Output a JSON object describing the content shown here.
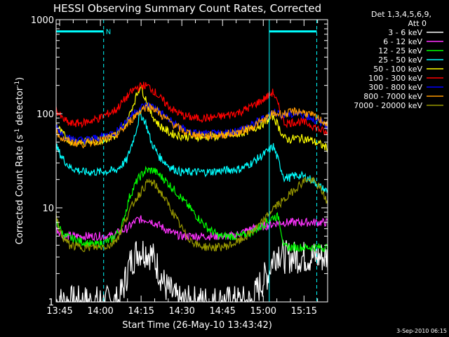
{
  "chart_data": {
    "type": "line",
    "title": "HESSI Observing Summary Count Rates, Corrected",
    "xlabel": "Start Time (26-May-10 13:43:42)",
    "ylabel": "Corrected Count Rate (s",
    "ylabel_exp1": "-1",
    "ylabel_mid": " detector",
    "ylabel_exp2": "-1",
    "ylabel_end": ")",
    "y_scale": "log",
    "ylim": [
      1,
      1000
    ],
    "x_ticks": [
      "13:45",
      "14:00",
      "14:15",
      "14:30",
      "14:45",
      "15:00",
      "15:15"
    ],
    "x_tick_minutes": [
      1.3,
      16.3,
      31.3,
      46.3,
      61.3,
      76.3,
      91.3
    ],
    "xlim_minutes": [
      0,
      100
    ],
    "y_tick_labels": [
      "1",
      "10",
      "100",
      "1000"
    ],
    "y_tick_values": [
      1,
      10,
      100,
      1000
    ],
    "legend_header": [
      "Det 1,3,4,5,6,9,",
      "Att 0"
    ],
    "series": [
      {
        "name": "3 - 6 keV",
        "color": "#ffffff",
        "x": [
          0,
          12,
          23,
          25,
          27,
          30,
          33,
          35,
          37,
          40,
          45,
          60,
          72,
          75,
          78,
          80,
          82,
          84
        ],
        "y": [
          1,
          1,
          1,
          1.5,
          2.5,
          3.5,
          3.5,
          3.2,
          2.5,
          1.5,
          1,
          1,
          1,
          1.5,
          2,
          3,
          3.5,
          3
        ]
      },
      {
        "name": "6 - 12 keV",
        "color": "#ff33ff",
        "x": [
          0,
          3,
          10,
          20,
          26,
          30,
          34,
          38,
          42,
          46,
          55,
          65,
          72,
          78,
          82
        ],
        "y": [
          6,
          5,
          5,
          5,
          6,
          7.5,
          7.5,
          6.5,
          5.5,
          5,
          5,
          5,
          6,
          6.5,
          7
        ]
      },
      {
        "name": "12 - 25 keV",
        "color": "#00ff00",
        "x": [
          0,
          3,
          8,
          14,
          20,
          24,
          27,
          30,
          33,
          36,
          40,
          44,
          48,
          52,
          56,
          60,
          64,
          68,
          72,
          76,
          80,
          82,
          84,
          95
        ],
        "y": [
          7,
          5,
          4.5,
          4,
          4.5,
          6,
          13,
          20,
          25,
          25,
          20,
          15,
          11,
          8,
          6,
          5,
          5,
          5,
          5.5,
          6.5,
          8,
          8,
          3.8,
          3.8
        ]
      },
      {
        "name": "25 - 50 keV",
        "color": "#00ffff",
        "x": [
          0,
          2,
          5,
          10,
          16,
          22,
          26,
          29,
          31,
          33,
          35,
          38,
          42,
          46,
          50,
          56,
          62,
          68,
          72,
          76,
          80,
          84,
          86,
          88,
          90,
          92,
          94,
          96,
          98,
          100
        ],
        "y": [
          45,
          35,
          27,
          24,
          24,
          25,
          32,
          60,
          100,
          80,
          50,
          35,
          27,
          24,
          24,
          24,
          25,
          26,
          30,
          36,
          45,
          21,
          21,
          22,
          22,
          21,
          20,
          18,
          16,
          15
        ]
      },
      {
        "name": "50 - 100 keV",
        "color": "#ffff00",
        "x": [
          0,
          2,
          5,
          10,
          16,
          22,
          26,
          29,
          31,
          33,
          35,
          38,
          42,
          46,
          50,
          56,
          62,
          68,
          72,
          76,
          80,
          84,
          86,
          88,
          90,
          92,
          94,
          96,
          98,
          100
        ],
        "y": [
          78,
          62,
          52,
          50,
          52,
          58,
          80,
          140,
          200,
          145,
          100,
          75,
          62,
          58,
          57,
          57,
          58,
          62,
          68,
          78,
          95,
          55,
          53,
          55,
          55,
          54,
          52,
          49,
          46,
          43
        ]
      },
      {
        "name": "100 - 300 keV",
        "color": "#ff0000",
        "x": [
          0,
          2,
          5,
          10,
          16,
          22,
          26,
          29,
          32,
          34,
          36,
          39,
          43,
          47,
          51,
          56,
          62,
          68,
          72,
          76,
          80,
          84,
          86,
          88,
          90,
          92,
          94,
          96,
          98,
          100
        ],
        "y": [
          110,
          90,
          78,
          80,
          90,
          110,
          150,
          185,
          200,
          195,
          175,
          140,
          110,
          95,
          90,
          90,
          95,
          105,
          120,
          140,
          170,
          80,
          80,
          82,
          82,
          80,
          76,
          70,
          66,
          60
        ]
      },
      {
        "name": "300 - 800 keV",
        "color": "#0000ff",
        "x": [
          0,
          2,
          5,
          10,
          16,
          22,
          26,
          29,
          32,
          34,
          36,
          39,
          43,
          47,
          51,
          56,
          62,
          68,
          72,
          76,
          80,
          84,
          86,
          88,
          90,
          92,
          94,
          96,
          98,
          100
        ],
        "y": [
          75,
          62,
          54,
          52,
          56,
          64,
          85,
          105,
          120,
          122,
          118,
          100,
          80,
          68,
          62,
          60,
          62,
          68,
          76,
          88,
          105,
          97,
          97,
          100,
          100,
          96,
          90,
          84,
          80,
          75
        ]
      },
      {
        "name": "800 - 7000 keV",
        "color": "#ff9900",
        "x": [
          0,
          2,
          5,
          10,
          16,
          22,
          26,
          29,
          32,
          34,
          36,
          39,
          43,
          47,
          51,
          56,
          62,
          68,
          72,
          76,
          80,
          84,
          86,
          88,
          90,
          92,
          94,
          96,
          98,
          100
        ],
        "y": [
          65,
          55,
          50,
          48,
          52,
          58,
          75,
          95,
          115,
          118,
          115,
          95,
          78,
          65,
          60,
          58,
          60,
          64,
          72,
          84,
          100,
          100,
          102,
          106,
          106,
          102,
          96,
          90,
          84,
          78
        ]
      },
      {
        "name": "7000 - 20000 keV",
        "color": "#999900",
        "x": [
          0,
          2,
          5,
          10,
          15,
          20,
          23,
          26,
          29,
          32,
          34,
          36,
          39,
          42,
          45,
          48,
          52,
          56,
          60,
          64,
          68,
          72,
          76,
          80,
          84,
          88,
          92,
          95,
          98,
          100
        ],
        "y": [
          8,
          5,
          4,
          3.8,
          3.8,
          4,
          5,
          8,
          12,
          16,
          19,
          18,
          14,
          10,
          7,
          5,
          4,
          3.8,
          3.8,
          4,
          4.5,
          5.5,
          7,
          10,
          12,
          16,
          20,
          19,
          15,
          11
        ]
      }
    ],
    "bars": [
      {
        "label": "",
        "x_start": 0,
        "x_end": 17.5,
        "y": 750,
        "color": "#00ffff"
      },
      {
        "label": "",
        "x_start": 78.5,
        "x_end": 96,
        "y": 750,
        "color": "#00ffff"
      }
    ],
    "bar_tag": "N",
    "vlines": [
      {
        "x": 0,
        "style": "solid",
        "color": "#00ffff"
      },
      {
        "x": 17.5,
        "style": "dashed",
        "color": "#00ffff"
      },
      {
        "x": 78.5,
        "style": "solid",
        "color": "#00ffff"
      },
      {
        "x": 96,
        "style": "dashed",
        "color": "#00ffff"
      }
    ],
    "stamp": "3-Sep-2010 06:15"
  }
}
